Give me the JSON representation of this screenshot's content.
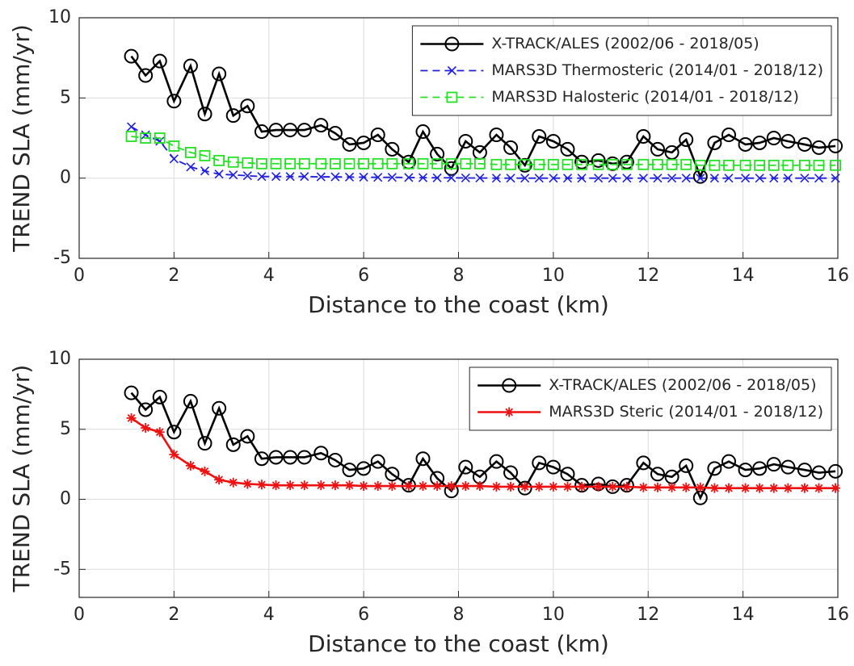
{
  "chart_data": [
    {
      "type": "line",
      "xlabel": "Distance to the coast (km)",
      "ylabel": "TREND SLA (mm/yr)",
      "x": [
        1.1,
        1.4,
        1.7,
        2.0,
        2.35,
        2.65,
        2.95,
        3.25,
        3.55,
        3.85,
        4.15,
        4.45,
        4.75,
        5.1,
        5.4,
        5.7,
        6.0,
        6.3,
        6.6,
        6.95,
        7.25,
        7.55,
        7.85,
        8.15,
        8.45,
        8.8,
        9.1,
        9.4,
        9.7,
        10.0,
        10.3,
        10.6,
        10.95,
        11.25,
        11.55,
        11.9,
        12.2,
        12.5,
        12.8,
        13.1,
        13.4,
        13.7,
        14.05,
        14.35,
        14.65,
        14.95,
        15.3,
        15.6,
        15.95
      ],
      "series": [
        {
          "name": "X-TRACK/ALES (2002/06 - 2018/05)",
          "color": "#000000",
          "marker": "circle",
          "linestyle": "solid",
          "values": [
            7.6,
            6.4,
            7.3,
            4.8,
            7.0,
            4.0,
            6.5,
            3.9,
            4.5,
            2.9,
            3.0,
            3.0,
            3.0,
            3.3,
            2.8,
            2.1,
            2.2,
            2.7,
            1.8,
            1.0,
            2.9,
            1.5,
            0.6,
            2.3,
            1.6,
            2.7,
            1.9,
            0.8,
            2.6,
            2.3,
            1.8,
            1.0,
            1.1,
            0.9,
            1.0,
            2.6,
            1.8,
            1.6,
            2.4,
            0.1,
            2.2,
            2.7,
            2.1,
            2.2,
            2.5,
            2.3,
            2.1,
            1.9,
            2.0
          ]
        },
        {
          "name": "MARS3D Thermosteric (2014/01 - 2018/12)",
          "color": "#1f1fe0",
          "marker": "x",
          "linestyle": "dashed",
          "values": [
            3.2,
            2.7,
            2.3,
            1.2,
            0.7,
            0.45,
            0.25,
            0.2,
            0.15,
            0.1,
            0.1,
            0.1,
            0.1,
            0.08,
            0.08,
            0.07,
            0.06,
            0.05,
            0.05,
            0.04,
            0.03,
            0.02,
            0.02,
            0.01,
            0.01,
            0,
            0,
            0,
            0,
            0,
            0,
            0,
            0,
            0,
            0,
            0,
            0,
            0,
            0,
            0,
            0,
            0,
            0,
            0,
            0,
            0,
            0,
            0,
            0
          ]
        },
        {
          "name": "MARS3D Halosteric (2014/01 - 2018/12)",
          "color": "#22e022",
          "marker": "square",
          "linestyle": "dashed",
          "values": [
            2.6,
            2.5,
            2.5,
            2.0,
            1.6,
            1.4,
            1.1,
            1.0,
            0.95,
            0.9,
            0.9,
            0.9,
            0.9,
            0.9,
            0.9,
            0.9,
            0.9,
            0.9,
            0.9,
            0.9,
            0.9,
            0.9,
            0.9,
            0.9,
            0.9,
            0.85,
            0.85,
            0.85,
            0.85,
            0.85,
            0.85,
            0.85,
            0.85,
            0.85,
            0.85,
            0.85,
            0.85,
            0.85,
            0.85,
            0.8,
            0.8,
            0.8,
            0.8,
            0.8,
            0.8,
            0.8,
            0.8,
            0.8,
            0.8
          ]
        }
      ],
      "xlim": [
        0,
        16
      ],
      "xticks": [
        0,
        2,
        4,
        6,
        8,
        10,
        12,
        14,
        16
      ],
      "ylim": [
        -5,
        10
      ],
      "yticks": [
        -5,
        0,
        5,
        10
      ],
      "grid": true,
      "legend": "top-right"
    },
    {
      "type": "line",
      "xlabel": "Distance to the coast (km)",
      "ylabel": "TREND SLA (mm/yr)",
      "x": [
        1.1,
        1.4,
        1.7,
        2.0,
        2.35,
        2.65,
        2.95,
        3.25,
        3.55,
        3.85,
        4.15,
        4.45,
        4.75,
        5.1,
        5.4,
        5.7,
        6.0,
        6.3,
        6.6,
        6.95,
        7.25,
        7.55,
        7.85,
        8.15,
        8.45,
        8.8,
        9.1,
        9.4,
        9.7,
        10.0,
        10.3,
        10.6,
        10.95,
        11.25,
        11.55,
        11.9,
        12.2,
        12.5,
        12.8,
        13.1,
        13.4,
        13.7,
        14.05,
        14.35,
        14.65,
        14.95,
        15.3,
        15.6,
        15.95
      ],
      "series": [
        {
          "name": "X-TRACK/ALES (2002/06 - 2018/05)",
          "color": "#000000",
          "marker": "circle",
          "linestyle": "solid",
          "values": [
            7.6,
            6.4,
            7.3,
            4.8,
            7.0,
            4.0,
            6.5,
            3.9,
            4.5,
            2.9,
            3.0,
            3.0,
            3.0,
            3.3,
            2.8,
            2.1,
            2.2,
            2.7,
            1.8,
            1.0,
            2.9,
            1.5,
            0.6,
            2.3,
            1.6,
            2.7,
            1.9,
            0.8,
            2.6,
            2.3,
            1.8,
            1.0,
            1.1,
            0.9,
            1.0,
            2.6,
            1.8,
            1.6,
            2.4,
            0.1,
            2.2,
            2.7,
            2.1,
            2.2,
            2.5,
            2.3,
            2.1,
            1.9,
            2.0
          ]
        },
        {
          "name": "MARS3D Steric (2014/01 - 2018/12)",
          "color": "#ee1111",
          "marker": "asterisk",
          "linestyle": "solid",
          "values": [
            5.8,
            5.1,
            4.8,
            3.2,
            2.4,
            2.0,
            1.4,
            1.2,
            1.1,
            1.05,
            1.0,
            1.0,
            1.0,
            1.0,
            1.0,
            1.0,
            0.95,
            0.95,
            0.95,
            0.95,
            0.95,
            0.95,
            0.95,
            0.95,
            0.95,
            0.9,
            0.9,
            0.9,
            0.9,
            0.9,
            0.9,
            0.9,
            0.9,
            0.9,
            0.9,
            0.85,
            0.85,
            0.85,
            0.85,
            0.85,
            0.8,
            0.8,
            0.8,
            0.8,
            0.8,
            0.8,
            0.8,
            0.8,
            0.8
          ]
        }
      ],
      "xlim": [
        0,
        16
      ],
      "xticks": [
        0,
        2,
        4,
        6,
        8,
        10,
        12,
        14,
        16
      ],
      "ylim": [
        -7,
        10
      ],
      "yticks": [
        -5,
        0,
        5,
        10
      ],
      "grid": true,
      "legend": "top-right"
    }
  ]
}
